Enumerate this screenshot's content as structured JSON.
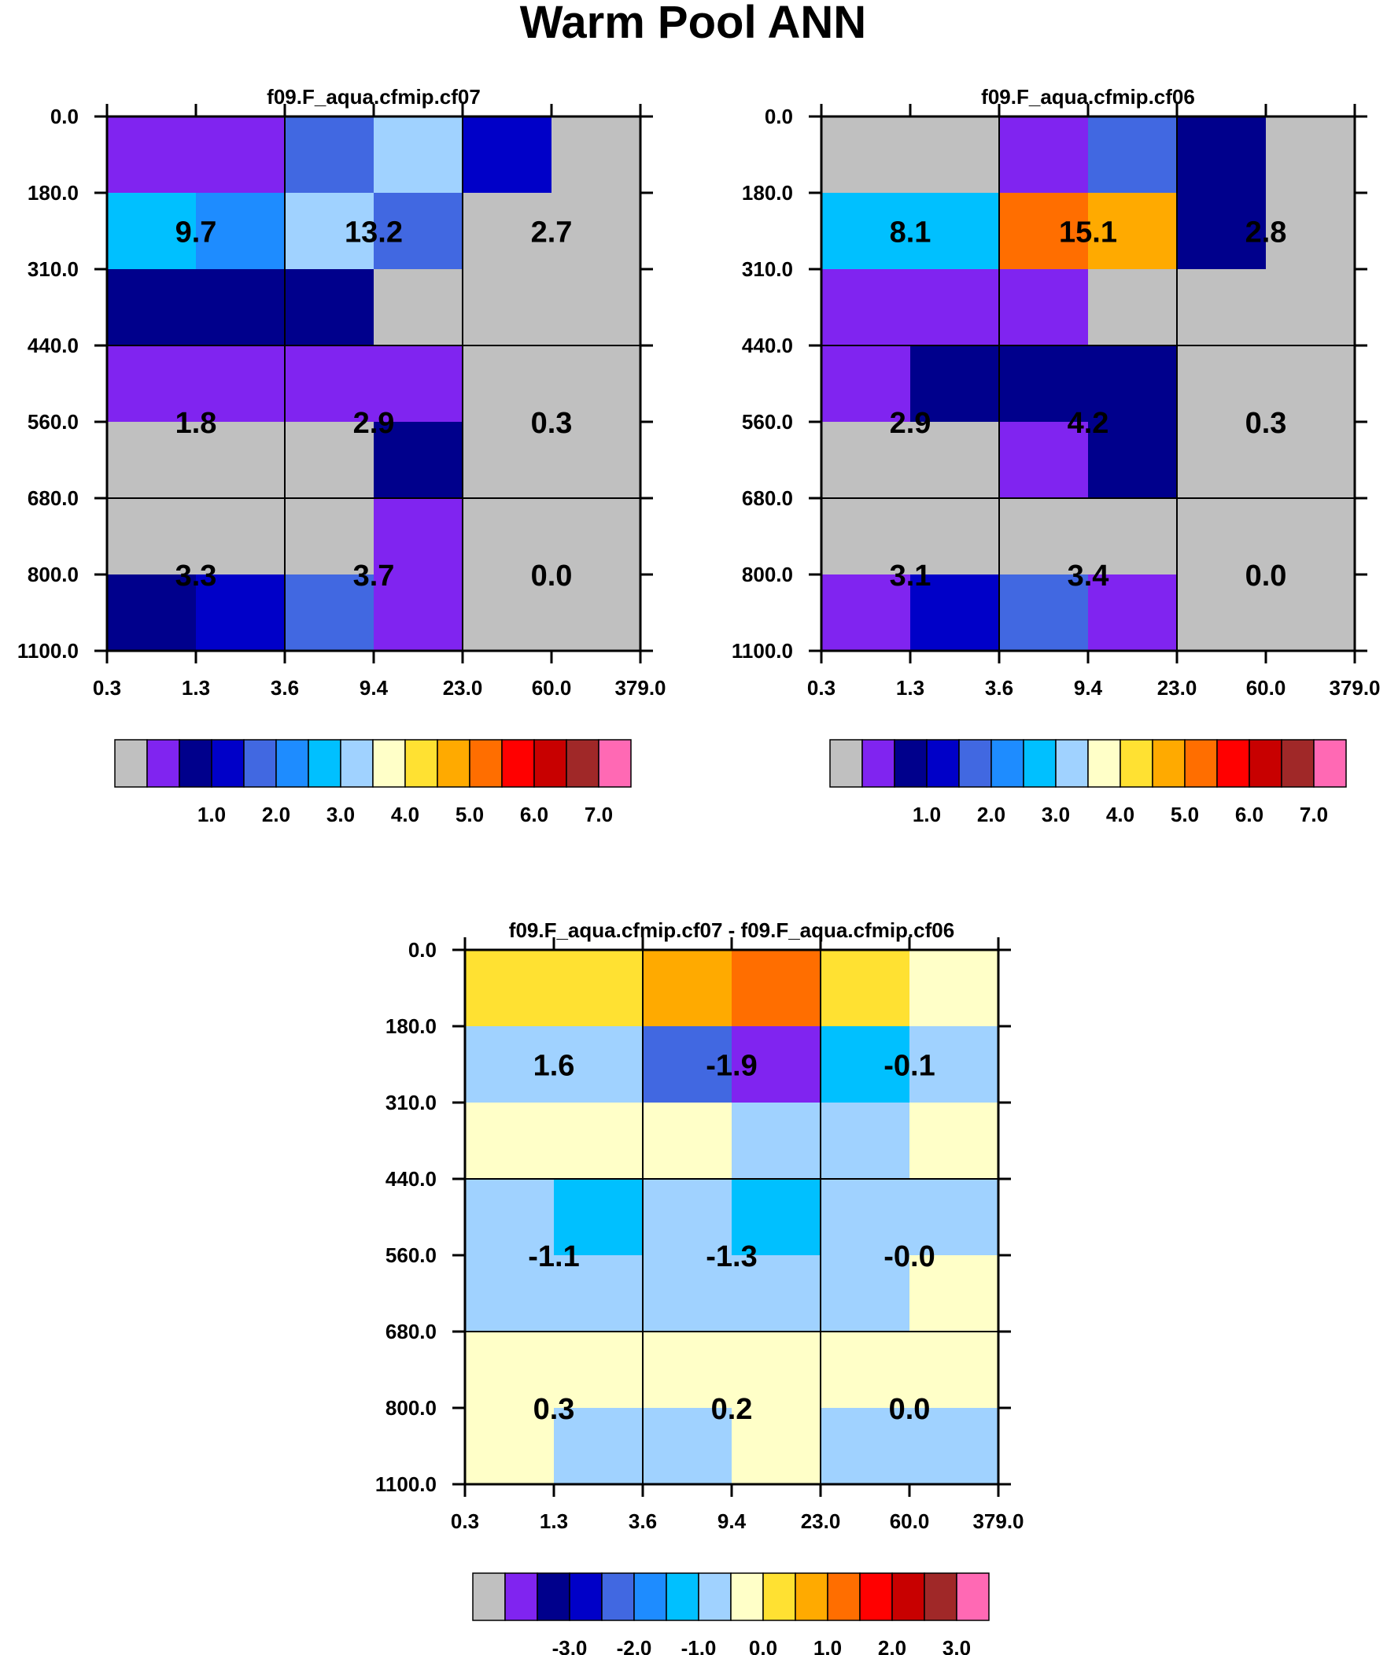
{
  "figure_title": "Warm Pool ANN",
  "palette": [
    "#c0c0c0",
    "#8024f0",
    "#00008c",
    "#0000c8",
    "#4168e1",
    "#1e8cff",
    "#00c0ff",
    "#a0d2ff",
    "#ffffc8",
    "#ffe132",
    "#ffaa00",
    "#ff6e00",
    "#ff0000",
    "#c80000",
    "#a02828",
    "#ff69b4"
  ],
  "chart_data": [
    {
      "type": "heatmap",
      "title": "f09.F_aqua.cfmip.cf07",
      "x_ticks": [
        "0.3",
        "1.3",
        "3.6",
        "9.4",
        "23.0",
        "60.0",
        "379.0"
      ],
      "y_ticks": [
        "0.0",
        "180.0",
        "310.0",
        "440.0",
        "560.0",
        "680.0",
        "800.0",
        "1100.0"
      ],
      "cells": [
        [
          1,
          1,
          4,
          7,
          3,
          0
        ],
        [
          6,
          5,
          7,
          4,
          0,
          0
        ],
        [
          2,
          2,
          2,
          0,
          0,
          0
        ],
        [
          1,
          1,
          1,
          1,
          0,
          0
        ],
        [
          0,
          0,
          0,
          2,
          0,
          0
        ],
        [
          0,
          0,
          0,
          1,
          0,
          0
        ],
        [
          2,
          3,
          4,
          1,
          0,
          0
        ]
      ],
      "box_labels": [
        [
          "9.7",
          "13.2",
          "2.7"
        ],
        [
          "1.8",
          "2.9",
          "0.3"
        ],
        [
          "3.3",
          "3.7",
          "0.0"
        ]
      ],
      "colorbar_ticks": [
        "1.0",
        "2.0",
        "3.0",
        "4.0",
        "5.0",
        "6.0",
        "7.0"
      ]
    },
    {
      "type": "heatmap",
      "title": "f09.F_aqua.cfmip.cf06",
      "x_ticks": [
        "0.3",
        "1.3",
        "3.6",
        "9.4",
        "23.0",
        "60.0",
        "379.0"
      ],
      "y_ticks": [
        "0.0",
        "180.0",
        "310.0",
        "440.0",
        "560.0",
        "680.0",
        "800.0",
        "1100.0"
      ],
      "cells": [
        [
          0,
          0,
          1,
          4,
          2,
          0
        ],
        [
          6,
          6,
          11,
          10,
          2,
          0
        ],
        [
          1,
          1,
          1,
          0,
          0,
          0
        ],
        [
          1,
          2,
          2,
          2,
          0,
          0
        ],
        [
          0,
          0,
          1,
          2,
          0,
          0
        ],
        [
          0,
          0,
          0,
          0,
          0,
          0
        ],
        [
          1,
          3,
          4,
          1,
          0,
          0
        ]
      ],
      "box_labels": [
        [
          "8.1",
          "15.1",
          "2.8"
        ],
        [
          "2.9",
          "4.2",
          "0.3"
        ],
        [
          "3.1",
          "3.4",
          "0.0"
        ]
      ],
      "colorbar_ticks": [
        "1.0",
        "2.0",
        "3.0",
        "4.0",
        "5.0",
        "6.0",
        "7.0"
      ]
    },
    {
      "type": "heatmap",
      "title": "f09.F_aqua.cfmip.cf07 - f09.F_aqua.cfmip.cf06",
      "x_ticks": [
        "0.3",
        "1.3",
        "3.6",
        "9.4",
        "23.0",
        "60.0",
        "379.0"
      ],
      "y_ticks": [
        "0.0",
        "180.0",
        "310.0",
        "440.0",
        "560.0",
        "680.0",
        "800.0",
        "1100.0"
      ],
      "cells": [
        [
          9,
          9,
          10,
          11,
          9,
          8
        ],
        [
          7,
          7,
          4,
          1,
          6,
          7
        ],
        [
          8,
          8,
          8,
          7,
          7,
          8
        ],
        [
          7,
          6,
          7,
          6,
          7,
          7
        ],
        [
          7,
          7,
          7,
          7,
          7,
          8
        ],
        [
          8,
          8,
          8,
          8,
          8,
          8
        ],
        [
          8,
          7,
          7,
          8,
          7,
          7
        ]
      ],
      "box_labels": [
        [
          "1.6",
          "-1.9",
          "-0.1"
        ],
        [
          "-1.1",
          "-1.3",
          "-0.0"
        ],
        [
          "0.3",
          "0.2",
          "0.0"
        ]
      ],
      "colorbar_ticks": [
        "-3.0",
        "-2.0",
        "-1.0",
        "0.0",
        "1.0",
        "2.0",
        "3.0"
      ]
    }
  ]
}
